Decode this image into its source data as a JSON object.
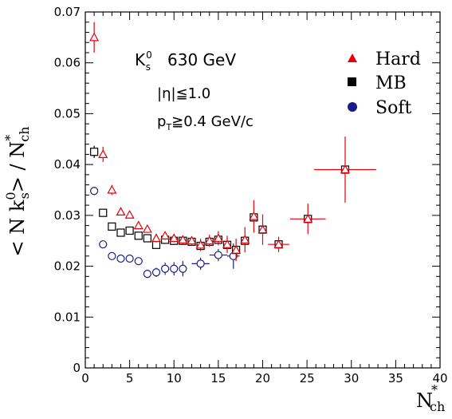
{
  "chart_data": {
    "type": "scatter",
    "title": "",
    "xlabel": "N",
    "xlabel_sup": "*",
    "xlabel_sub": "ch",
    "ylabel": "< N k",
    "ylabel_sup": "0",
    "ylabel_sub": "s",
    "ylabel_tail": "> / N",
    "ylabel_tail_sup": "*",
    "ylabel_tail_sub": "ch",
    "xlim": [
      0,
      40
    ],
    "ylim": [
      0,
      0.07
    ],
    "x_ticks": [
      "0",
      "5",
      "10",
      "15",
      "20",
      "25",
      "30",
      "35",
      "40"
    ],
    "y_ticks": [
      "0",
      "0.01",
      "0.02",
      "0.03",
      "0.04",
      "0.05",
      "0.06",
      "0.07"
    ],
    "grid": false,
    "legend_position": "top-right",
    "annotations": {
      "particle": "K",
      "particle_sup": "0",
      "particle_sub": "s",
      "energy": "630 GeV",
      "eta_cut": "|η|≦1.0",
      "pt_p": "p",
      "pt_sub": "T",
      "pt_rest": "≧0.4 GeV/c"
    },
    "series": [
      {
        "name": "Hard",
        "marker": "triangle-open",
        "legend_marker": "triangle-filled",
        "color": "#e8000b",
        "points": [
          {
            "x": 1,
            "y": 0.065,
            "yerr": 0.003
          },
          {
            "x": 2,
            "y": 0.042,
            "yerr": 0.0015
          },
          {
            "x": 3,
            "y": 0.035,
            "yerr": 0.001
          },
          {
            "x": 4,
            "y": 0.0307,
            "yerr": 0.0007
          },
          {
            "x": 5,
            "y": 0.0301,
            "yerr": 0.0007
          },
          {
            "x": 6,
            "y": 0.028,
            "yerr": 0.0007
          },
          {
            "x": 7,
            "y": 0.0273,
            "yerr": 0.0007
          },
          {
            "x": 8,
            "y": 0.0255,
            "yerr": 0.0008
          },
          {
            "x": 9,
            "y": 0.026,
            "yerr": 0.0008
          },
          {
            "x": 10,
            "y": 0.0255,
            "yerr": 0.0008
          },
          {
            "x": 11,
            "y": 0.0252,
            "yerr": 0.0008
          },
          {
            "x": 12,
            "y": 0.025,
            "yerr": 0.0009
          },
          {
            "x": 13,
            "y": 0.0242,
            "yerr": 0.0012
          },
          {
            "x": 14,
            "y": 0.025,
            "yerr": 0.0012
          },
          {
            "x": 15,
            "y": 0.0255,
            "yerr": 0.0014
          },
          {
            "x": 16,
            "y": 0.0243,
            "yerr": 0.0017
          },
          {
            "x": 17,
            "y": 0.0232,
            "yerr": 0.0022
          },
          {
            "x": 18,
            "y": 0.0252,
            "yerr": 0.0025
          },
          {
            "x": 19,
            "y": 0.0298,
            "yerr": 0.0032
          },
          {
            "x": 20,
            "y": 0.0272,
            "yerr": 0.003
          },
          {
            "x": 21.8,
            "y": 0.0243,
            "yerr": 0.0015,
            "xerr": 1.2
          },
          {
            "x": 25.1,
            "y": 0.0293,
            "yerr": 0.003,
            "xerr": 2
          },
          {
            "x": 29.3,
            "y": 0.039,
            "yerr": 0.0065,
            "xerr": 3.5
          }
        ]
      },
      {
        "name": "MB",
        "marker": "square-open",
        "legend_marker": "square-filled",
        "color": "#000000",
        "points": [
          {
            "x": 1,
            "y": 0.0425,
            "yerr": 0.0012
          },
          {
            "x": 2,
            "y": 0.0305
          },
          {
            "x": 3,
            "y": 0.0278
          },
          {
            "x": 4,
            "y": 0.0266
          },
          {
            "x": 5,
            "y": 0.027
          },
          {
            "x": 6,
            "y": 0.026
          },
          {
            "x": 7,
            "y": 0.0255
          },
          {
            "x": 8,
            "y": 0.0242
          },
          {
            "x": 9,
            "y": 0.0252
          },
          {
            "x": 10,
            "y": 0.025
          },
          {
            "x": 11,
            "y": 0.025
          },
          {
            "x": 12,
            "y": 0.0248
          },
          {
            "x": 13,
            "y": 0.024
          },
          {
            "x": 14,
            "y": 0.0248
          },
          {
            "x": 15,
            "y": 0.0252
          },
          {
            "x": 16,
            "y": 0.0242
          },
          {
            "x": 17,
            "y": 0.0232
          },
          {
            "x": 18,
            "y": 0.025
          },
          {
            "x": 19,
            "y": 0.0296
          },
          {
            "x": 20,
            "y": 0.0272
          },
          {
            "x": 21.8,
            "y": 0.0243
          },
          {
            "x": 25.1,
            "y": 0.0293
          },
          {
            "x": 29.3,
            "y": 0.039
          }
        ]
      },
      {
        "name": "Soft",
        "marker": "circle-open",
        "legend_marker": "circle-filled",
        "color": "#1c1c86",
        "points": [
          {
            "x": 1,
            "y": 0.0348,
            "yerr": 0.0008
          },
          {
            "x": 2,
            "y": 0.0243
          },
          {
            "x": 3,
            "y": 0.022
          },
          {
            "x": 4,
            "y": 0.0215
          },
          {
            "x": 5,
            "y": 0.0215
          },
          {
            "x": 6,
            "y": 0.021
          },
          {
            "x": 7,
            "y": 0.0185,
            "yerr": 0.0008
          },
          {
            "x": 8,
            "y": 0.0188,
            "yerr": 0.0009
          },
          {
            "x": 9,
            "y": 0.0195,
            "yerr": 0.0012
          },
          {
            "x": 10,
            "y": 0.0195,
            "yerr": 0.0013
          },
          {
            "x": 11,
            "y": 0.0195,
            "yerr": 0.0015
          },
          {
            "x": 13,
            "y": 0.0205,
            "yerr": 0.0012,
            "xerr": 1
          },
          {
            "x": 15,
            "y": 0.0222,
            "yerr": 0.0012,
            "xerr": 1
          },
          {
            "x": 16.7,
            "y": 0.022,
            "yerr": 0.0025,
            "xerr": 0.7
          }
        ]
      }
    ]
  }
}
